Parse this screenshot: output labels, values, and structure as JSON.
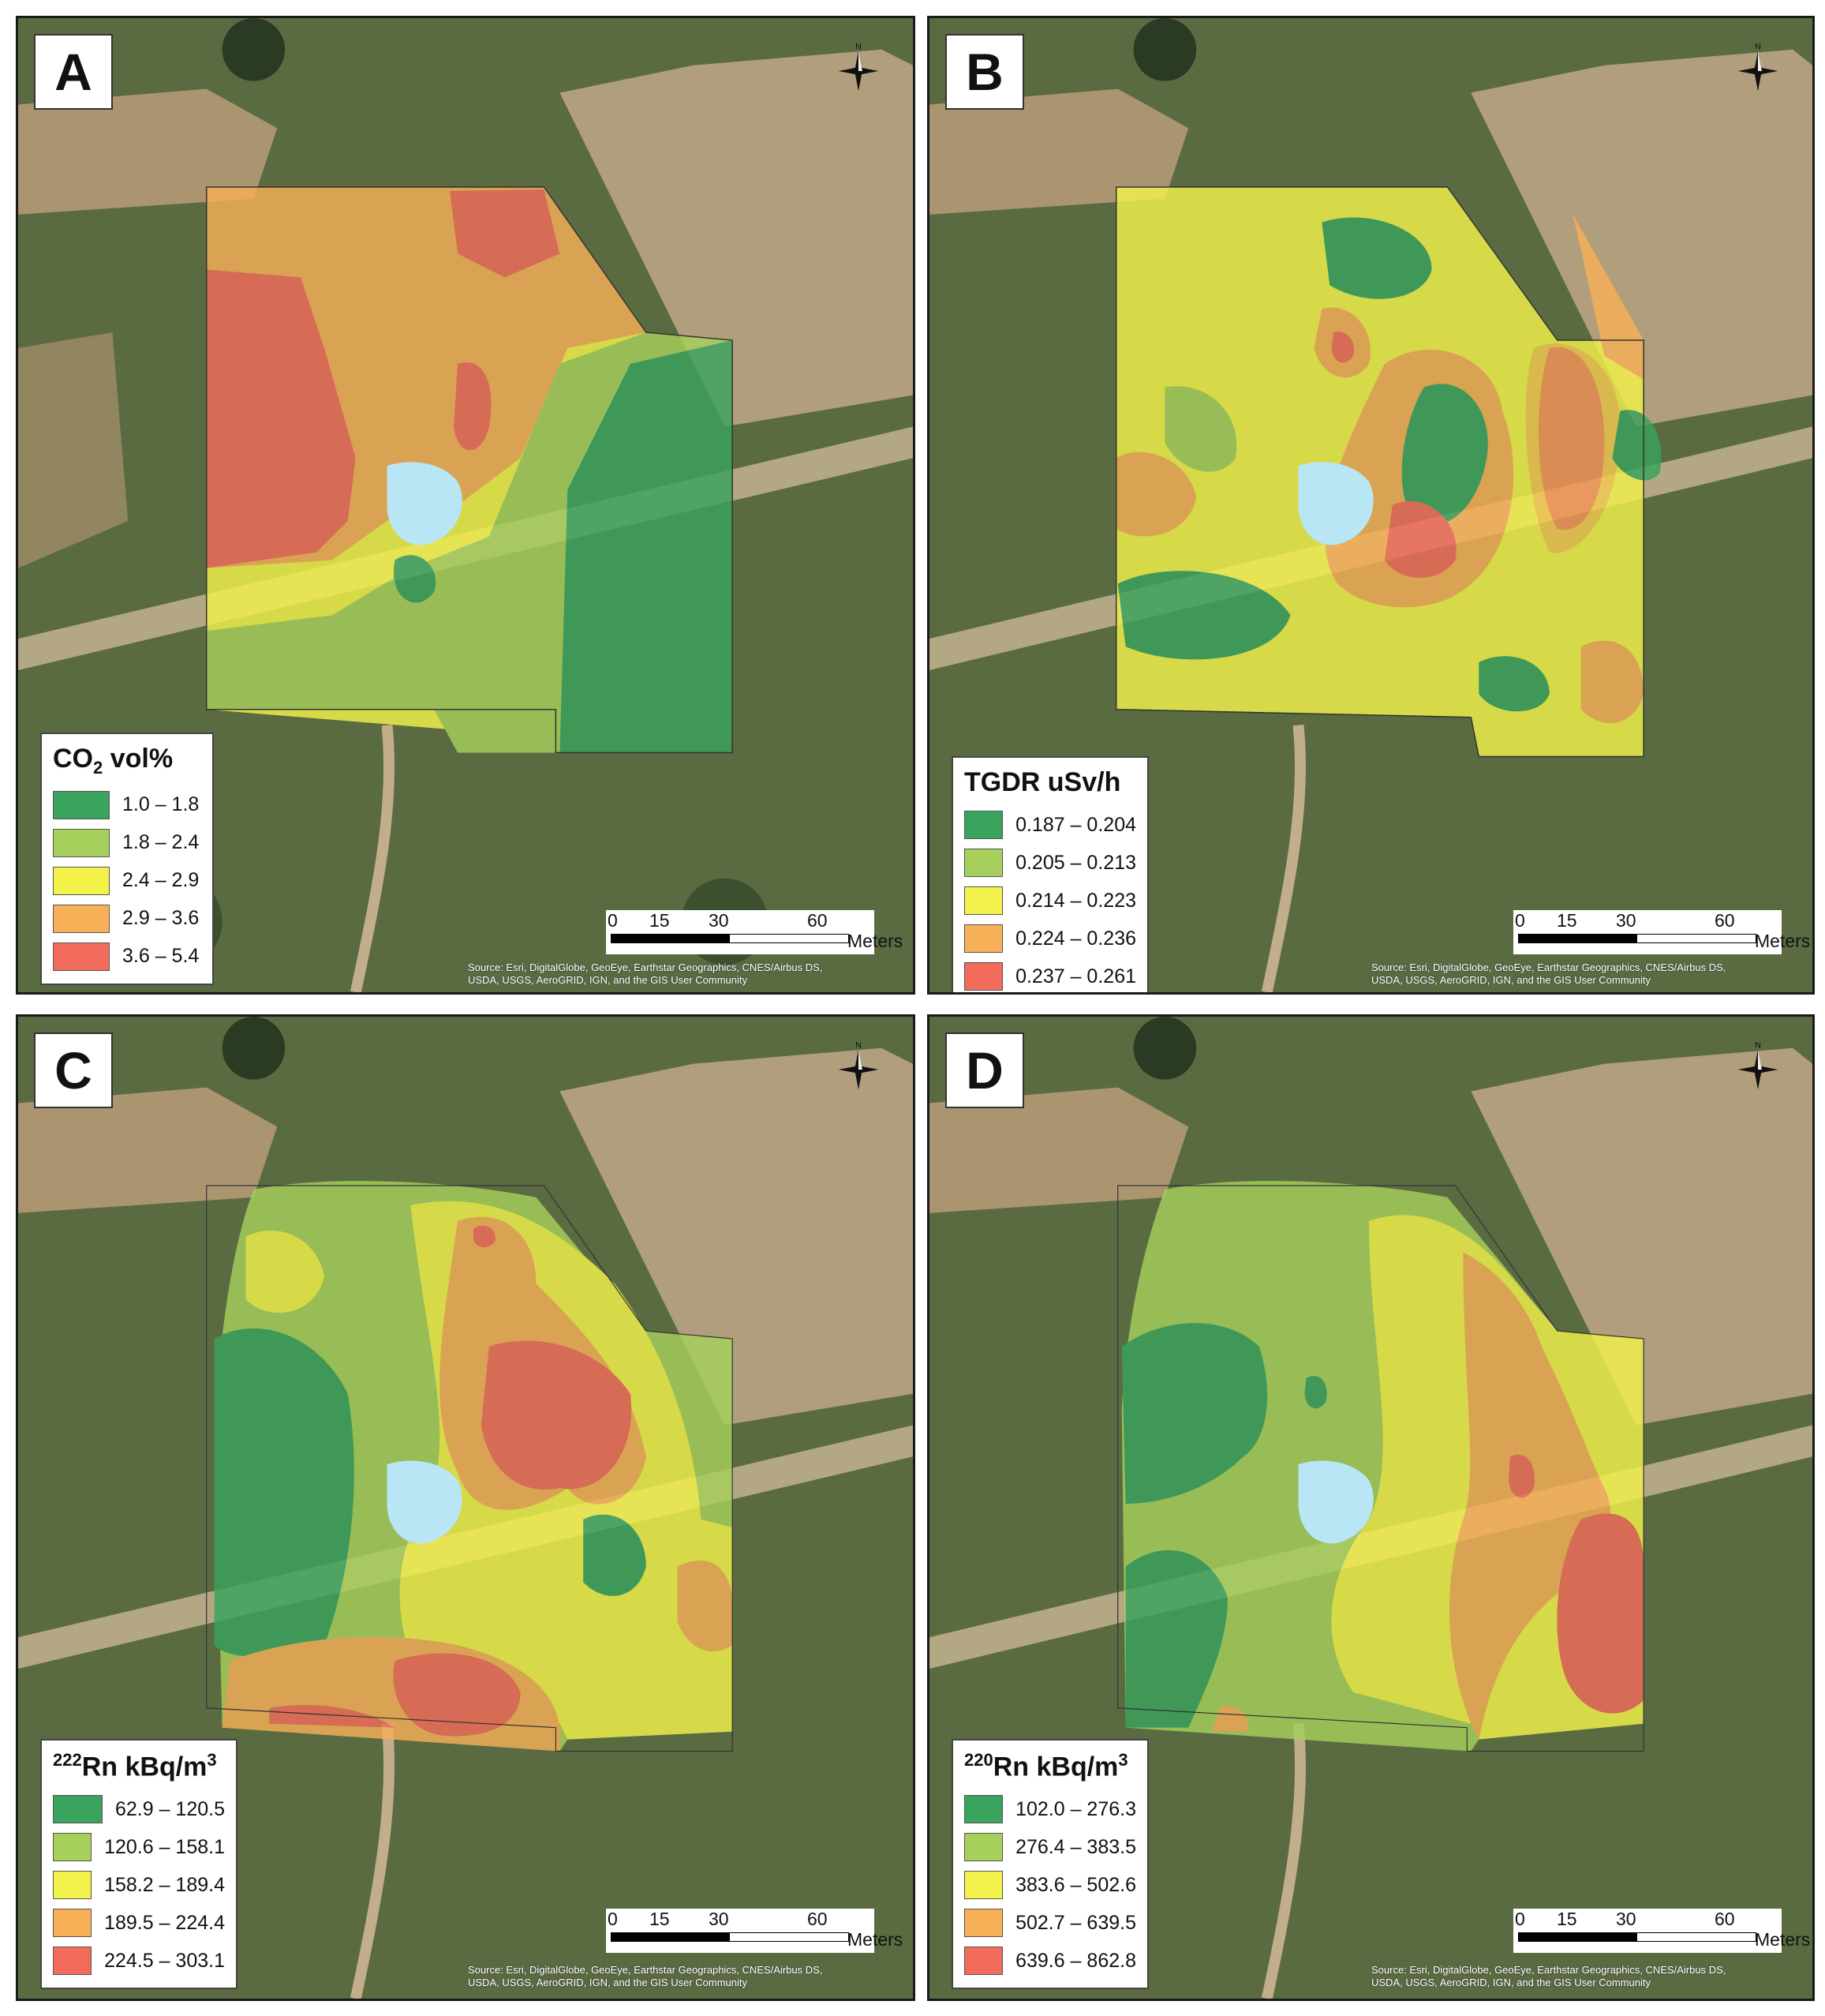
{
  "panels": [
    {
      "letter": "A",
      "legend": {
        "title_main": "CO",
        "title_sub": "2",
        "title_sup": "",
        "title_rest": " vol%",
        "classes": [
          {
            "label": "1.0 – 1.8",
            "color": "#3aa35e"
          },
          {
            "label": "1.8 – 2.4",
            "color": "#a6d05b"
          },
          {
            "label": "2.4 – 2.9",
            "color": "#f2f24a"
          },
          {
            "label": "2.9 – 3.6",
            "color": "#f7b057"
          },
          {
            "label": "3.6 – 5.4",
            "color": "#f26b5b"
          }
        ]
      },
      "scale": {
        "ticks": [
          "0",
          "15",
          "30",
          "60"
        ],
        "units": "Meters"
      },
      "source": {
        "line1": "Source: Esri, DigitalGlobe, GeoEye, Earthstar Geographics, CNES/Airbus DS,",
        "line2": "USDA, USGS, AeroGRID, IGN, and the GIS User Community"
      }
    },
    {
      "letter": "B",
      "legend": {
        "title_main": "TGDR uSv/h",
        "title_sub": "",
        "title_sup": "",
        "title_rest": "",
        "classes": [
          {
            "label": "0.187 – 0.204",
            "color": "#3aa35e"
          },
          {
            "label": "0.205 – 0.213",
            "color": "#a6d05b"
          },
          {
            "label": "0.214 – 0.223",
            "color": "#f2f24a"
          },
          {
            "label": "0.224 – 0.236",
            "color": "#f7b057"
          },
          {
            "label": "0.237 – 0.261",
            "color": "#f26b5b"
          }
        ]
      },
      "scale": {
        "ticks": [
          "0",
          "15",
          "30",
          "60"
        ],
        "units": "Meters"
      },
      "source": {
        "line1": "Source: Esri, DigitalGlobe, GeoEye, Earthstar Geographics, CNES/Airbus DS,",
        "line2": "USDA, USGS, AeroGRID, IGN, and the GIS User Community"
      }
    },
    {
      "letter": "C",
      "legend": {
        "title_main": "",
        "title_sub": "",
        "title_sup": "222",
        "title_rest": "Rn kBq/m",
        "title_sup2": "3",
        "classes": [
          {
            "label": "62.9 – 120.5",
            "color": "#3aa35e"
          },
          {
            "label": "120.6 – 158.1",
            "color": "#a6d05b"
          },
          {
            "label": "158.2 – 189.4",
            "color": "#f2f24a"
          },
          {
            "label": "189.5 – 224.4",
            "color": "#f7b057"
          },
          {
            "label": "224.5 – 303.1",
            "color": "#f26b5b"
          }
        ]
      },
      "scale": {
        "ticks": [
          "0",
          "15",
          "30",
          "60"
        ],
        "units": "Meters"
      },
      "source": {
        "line1": "Source: Esri, DigitalGlobe, GeoEye, Earthstar Geographics, CNES/Airbus DS,",
        "line2": "USDA, USGS, AeroGRID, IGN, and the GIS User Community"
      }
    },
    {
      "letter": "D",
      "legend": {
        "title_main": "",
        "title_sub": "",
        "title_sup": "220",
        "title_rest": "Rn kBq/m",
        "title_sup2": "3",
        "classes": [
          {
            "label": "102.0 – 276.3",
            "color": "#3aa35e"
          },
          {
            "label": "276.4 – 383.5",
            "color": "#a6d05b"
          },
          {
            "label": "383.6 – 502.6",
            "color": "#f2f24a"
          },
          {
            "label": "502.7 – 639.5",
            "color": "#f7b057"
          },
          {
            "label": "639.6 – 862.8",
            "color": "#f26b5b"
          }
        ]
      },
      "scale": {
        "ticks": [
          "0",
          "15",
          "30",
          "60"
        ],
        "units": "Meters"
      },
      "source": {
        "line1": "Source: Esri, DigitalGlobe, GeoEye, Earthstar Geographics, CNES/Airbus DS,",
        "line2": "USDA, USGS, AeroGRID, IGN, and the GIS User Community"
      }
    }
  ],
  "north_label": "N",
  "colors": {
    "water": "#b8e6f5",
    "field": "#b49e7e",
    "vegetation": "#4f6a3a",
    "road": "#c8b89c"
  }
}
